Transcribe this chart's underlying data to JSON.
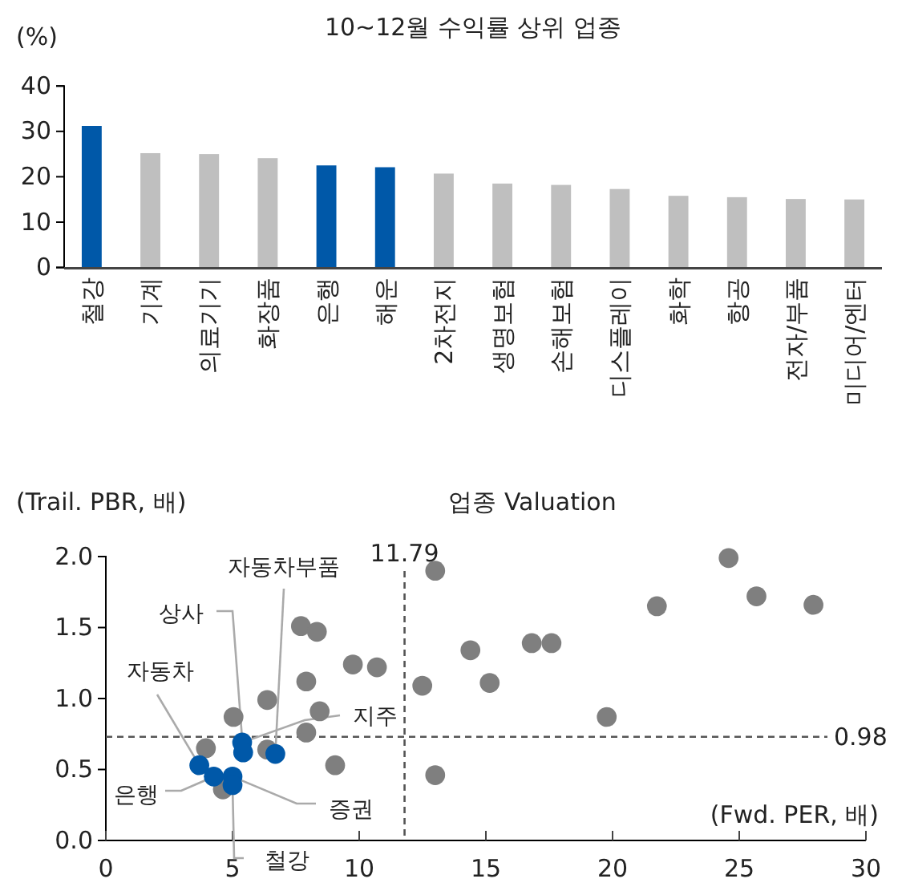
{
  "chart_data": [
    {
      "type": "bar",
      "title": "10~12월 수익률 상위 업종",
      "ylabel": "(%)",
      "categories": [
        "철강",
        "기계",
        "의료기기",
        "화장품",
        "은행",
        "해운",
        "2차전지",
        "생명보험",
        "손해보험",
        "디스플레이",
        "화학",
        "항공",
        "전자/부품",
        "미디어/엔터"
      ],
      "values": [
        31.2,
        25.2,
        25.0,
        24.1,
        22.5,
        22.1,
        20.7,
        18.5,
        18.2,
        17.3,
        15.8,
        15.5,
        15.1,
        15.0
      ],
      "colors": [
        "#0058a8",
        "#bfbfbf",
        "#bfbfbf",
        "#bfbfbf",
        "#0058a8",
        "#0058a8",
        "#bfbfbf",
        "#bfbfbf",
        "#bfbfbf",
        "#bfbfbf",
        "#bfbfbf",
        "#bfbfbf",
        "#bfbfbf",
        "#bfbfbf"
      ],
      "ylim": [
        0,
        40
      ],
      "yticks": [
        0,
        10,
        20,
        30,
        40
      ],
      "grid": false
    },
    {
      "type": "scatter",
      "title": "업종 Valuation",
      "ylabel": "(Trail. PBR, 배)",
      "xlabel": "(Fwd. PER, 배)",
      "series": [
        {
          "color": "#7f7f7f",
          "x": [
            13.0,
            7.7,
            8.33,
            9.75,
            10.7,
            7.91,
            6.37,
            8.44,
            5.04,
            7.91,
            3.95,
            6.37,
            9.05,
            13.0,
            4.62,
            12.49,
            24.58,
            25.68,
            27.93,
            21.75,
            16.81,
            17.59,
            14.39,
            15.15,
            19.77
          ],
          "values": [
            1.9,
            1.51,
            1.47,
            1.24,
            1.22,
            1.12,
            0.99,
            0.91,
            0.87,
            0.76,
            0.65,
            0.64,
            0.53,
            0.46,
            0.36,
            1.09,
            1.99,
            1.72,
            1.66,
            1.65,
            1.39,
            1.39,
            1.34,
            1.11,
            0.87
          ]
        },
        {
          "color": "#0058a8",
          "x": [
            3.69,
            4.26,
            5.0,
            5.0,
            5.38,
            5.42,
            6.69
          ],
          "values": [
            0.53,
            0.45,
            0.45,
            0.39,
            0.69,
            0.62,
            0.61
          ]
        }
      ],
      "marker": "circle",
      "annotations": [
        {
          "text": "자동차부품",
          "x": 6.69,
          "y": 0.61
        },
        {
          "text": "상사",
          "x": 5.42,
          "y": 0.62
        },
        {
          "text": "자동차",
          "x": 3.69,
          "y": 0.53
        },
        {
          "text": "지주",
          "x": 5.38,
          "y": 0.69
        },
        {
          "text": "은행",
          "x": 4.26,
          "y": 0.45
        },
        {
          "text": "증권",
          "x": 5.0,
          "y": 0.45
        },
        {
          "text": "철강",
          "x": 5.0,
          "y": 0.39
        },
        "0.98"
      ],
      "ref_lines": [
        {
          "axis": "x",
          "value": 11.79,
          "label": "11.79",
          "line_style": "dashed"
        },
        {
          "axis": "y",
          "value": 0.73,
          "line_style": "dashed"
        }
      ],
      "xlim": [
        0,
        30
      ],
      "xticks": [
        0,
        5,
        10,
        15,
        20,
        25,
        30
      ],
      "ylim": [
        0,
        2.0
      ],
      "yticks": [
        {
          "value": 0,
          "label": "0.0"
        },
        {
          "value": 0.5,
          "label": "0.5"
        },
        {
          "value": 1.0,
          "label": "1.0"
        },
        {
          "value": 1.5,
          "label": "1.5"
        },
        {
          "value": 2.0,
          "label": "2.0"
        }
      ],
      "grid": false
    }
  ]
}
